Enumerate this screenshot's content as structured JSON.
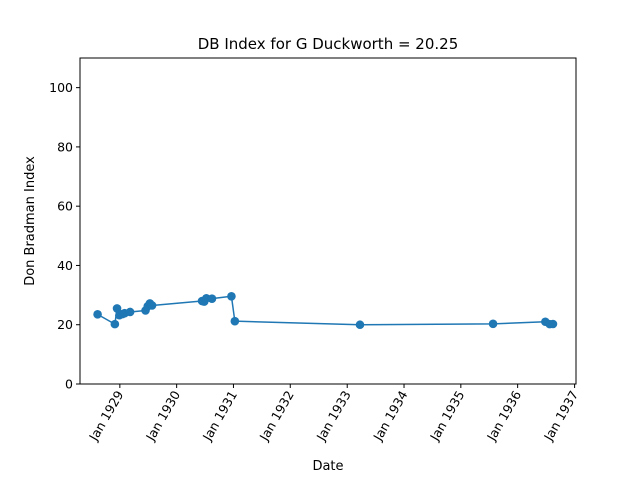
{
  "chart_data": {
    "type": "line",
    "title": "DB Index for G Duckworth = 20.25",
    "xlabel": "Date",
    "ylabel": "Don Bradman Index",
    "ylim": [
      0,
      110
    ],
    "xlim": [
      "1928-04-20",
      "1937-01-10"
    ],
    "grid": false,
    "legend": "none",
    "color": "#1f77b4",
    "marker": "circle",
    "y_ticks": [
      0,
      20,
      40,
      60,
      80,
      100
    ],
    "x_ticks": [
      {
        "date": "1929-01-01",
        "label": "Jan 1929"
      },
      {
        "date": "1930-01-01",
        "label": "Jan 1930"
      },
      {
        "date": "1931-01-01",
        "label": "Jan 1931"
      },
      {
        "date": "1932-01-01",
        "label": "Jan 1932"
      },
      {
        "date": "1933-01-01",
        "label": "Jan 1933"
      },
      {
        "date": "1934-01-01",
        "label": "Jan 1934"
      },
      {
        "date": "1935-01-01",
        "label": "Jan 1935"
      },
      {
        "date": "1936-01-01",
        "label": "Jan 1936"
      },
      {
        "date": "1937-01-01",
        "label": "Jan 1937"
      }
    ],
    "series": [
      {
        "points": [
          {
            "x": "1928-08-11",
            "y": 23.5
          },
          {
            "x": "1928-11-30",
            "y": 20.2
          },
          {
            "x": "1928-12-14",
            "y": 25.5
          },
          {
            "x": "1928-12-29",
            "y": 23.2
          },
          {
            "x": "1929-01-18",
            "y": 23.6
          },
          {
            "x": "1929-02-01",
            "y": 23.9
          },
          {
            "x": "1929-03-08",
            "y": 24.3
          },
          {
            "x": "1929-06-15",
            "y": 24.8
          },
          {
            "x": "1929-06-29",
            "y": 26.2
          },
          {
            "x": "1929-07-13",
            "y": 27.2
          },
          {
            "x": "1929-07-27",
            "y": 26.5
          },
          {
            "x": "1930-06-13",
            "y": 28.0
          },
          {
            "x": "1930-06-27",
            "y": 27.8
          },
          {
            "x": "1930-07-11",
            "y": 28.9
          },
          {
            "x": "1930-08-16",
            "y": 28.8
          },
          {
            "x": "1930-12-19",
            "y": 29.6
          },
          {
            "x": "1931-01-10",
            "y": 21.2
          },
          {
            "x": "1933-03-24",
            "y": 20.0
          },
          {
            "x": "1935-07-27",
            "y": 20.3
          },
          {
            "x": "1936-06-27",
            "y": 21.0
          },
          {
            "x": "1936-07-25",
            "y": 20.2
          },
          {
            "x": "1936-08-15",
            "y": 20.25
          }
        ]
      }
    ]
  }
}
